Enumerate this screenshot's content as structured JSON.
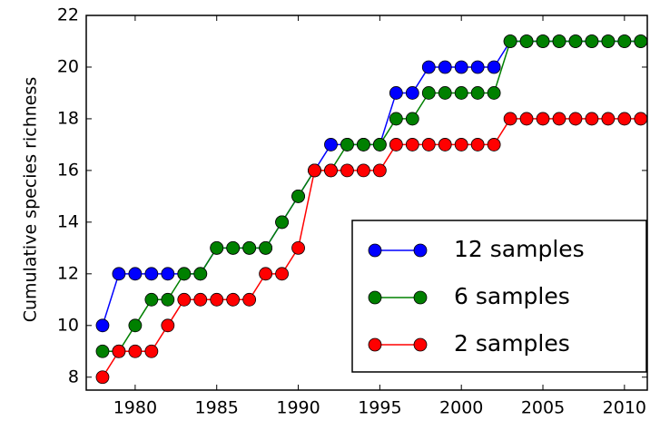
{
  "chart_data": {
    "type": "line",
    "y_label": "Cumulative species richness",
    "x": [
      1978,
      1979,
      1980,
      1981,
      1982,
      1983,
      1984,
      1985,
      1986,
      1987,
      1988,
      1989,
      1990,
      1991,
      1992,
      1993,
      1994,
      1995,
      1996,
      1997,
      1998,
      1999,
      2000,
      2001,
      2002,
      2003,
      2004,
      2005,
      2006,
      2007,
      2008,
      2009,
      2010,
      2011
    ],
    "series": [
      {
        "name": "12 samples",
        "color": "#0000ff",
        "values": [
          10,
          12,
          12,
          12,
          12,
          12,
          12,
          13,
          13,
          13,
          13,
          14,
          15,
          16,
          17,
          17,
          17,
          17,
          19,
          19,
          20,
          20,
          20,
          20,
          20,
          21,
          21,
          21,
          21,
          21,
          21,
          21,
          21,
          21
        ]
      },
      {
        "name": "6 samples",
        "color": "#008000",
        "values": [
          9,
          9,
          10,
          11,
          11,
          12,
          12,
          13,
          13,
          13,
          13,
          14,
          15,
          16,
          16,
          17,
          17,
          17,
          18,
          18,
          19,
          19,
          19,
          19,
          19,
          21,
          21,
          21,
          21,
          21,
          21,
          21,
          21,
          21
        ]
      },
      {
        "name": "2 samples",
        "color": "#ff0000",
        "values": [
          8,
          9,
          9,
          9,
          10,
          11,
          11,
          11,
          11,
          11,
          12,
          12,
          13,
          16,
          16,
          16,
          16,
          16,
          17,
          17,
          17,
          17,
          17,
          17,
          17,
          18,
          18,
          18,
          18,
          18,
          18,
          18,
          18,
          18
        ]
      }
    ],
    "xlim": [
      1977,
      2011.4
    ],
    "ylim": [
      7.5,
      22
    ],
    "xticks": [
      1980,
      1985,
      1990,
      1995,
      2000,
      2005,
      2010
    ],
    "yticks": [
      8,
      10,
      12,
      14,
      16,
      18,
      20,
      22
    ],
    "legend": "lower right"
  }
}
